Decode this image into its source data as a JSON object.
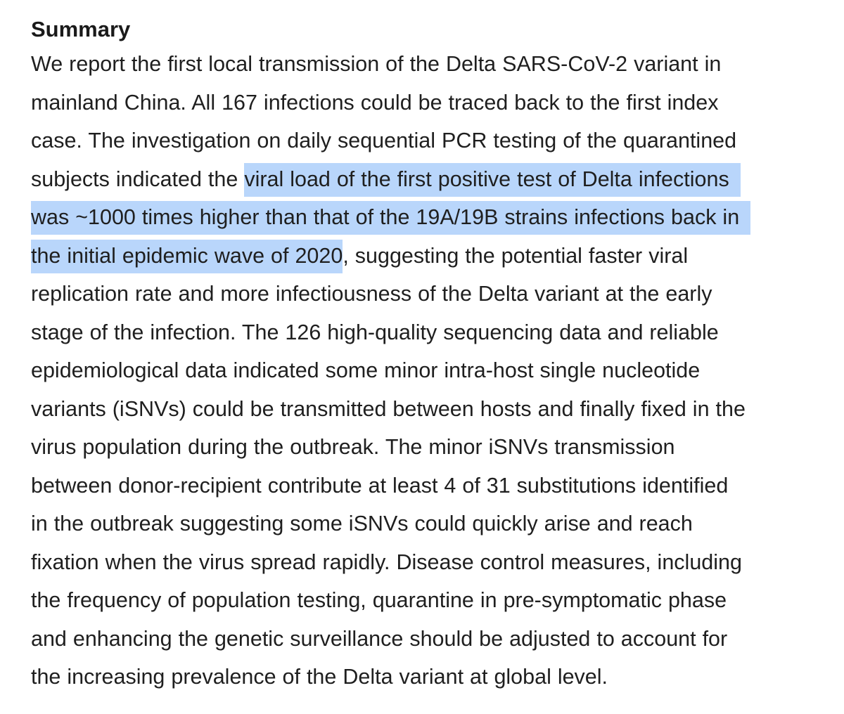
{
  "document": {
    "heading": "Summary",
    "lines": [
      "We report the first local transmission of the Delta SARS-CoV-2 variant in",
      "mainland China. All 167 infections could be traced back to the first index",
      "case. The investigation on daily sequential PCR testing of the quarantined"
    ],
    "line4_plain": "subjects indicated the ",
    "line4_highlight": "viral load of the first positive test of Delta infections",
    "line5_highlight": "was ~1000 times higher than that of the 19A/19B strains infections back in",
    "line6_highlight": "the initial epidemic wave of 2020",
    "line6_plain": ", suggesting the potential faster viral",
    "rest_lines": [
      "replication rate and more infectiousness of the Delta variant at the early",
      "stage of the infection. The 126 high-quality sequencing data and reliable",
      "epidemiological data indicated some minor intra-host single nucleotide",
      "variants (iSNVs) could be transmitted between hosts and finally fixed in the",
      "virus population during the outbreak. The minor iSNVs transmission",
      "between donor-recipient contribute at least 4 of 31 substitutions identified",
      "in the outbreak suggesting some iSNVs could quickly arise and reach",
      "fixation when the virus spread rapidly. Disease control measures, including",
      "the frequency of population testing, quarantine in pre-symptomatic phase",
      "and enhancing the genetic surveillance should be adjusted to account for",
      "the increasing prevalence of the Delta variant at global level."
    ],
    "highlight_color": "#b9d6fb"
  }
}
